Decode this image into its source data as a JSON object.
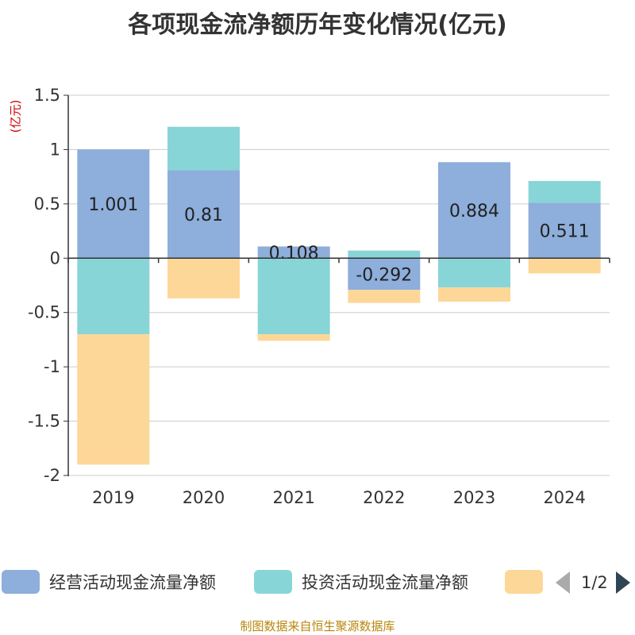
{
  "chart_data": {
    "type": "bar",
    "stacked": true,
    "title": "各项现金流净额历年变化情况(亿元)",
    "ylabel": "(亿元)",
    "categories": [
      "2019",
      "2020",
      "2021",
      "2022",
      "2023",
      "2024"
    ],
    "ylim": [
      -2,
      1.5
    ],
    "yticks": [
      1.5,
      1,
      0.5,
      0,
      -0.5,
      -1,
      -1.5,
      -2
    ],
    "ytick_labels": [
      "1.5",
      "1",
      "0.5",
      "0",
      "-0.5",
      "-1",
      "-1.5",
      "-2"
    ],
    "series": [
      {
        "name": "经营活动现金流量净额",
        "color": "#8eaedb",
        "values": [
          1.001,
          0.81,
          0.108,
          -0.292,
          0.884,
          0.511
        ],
        "labels": [
          "1.001",
          "0.81",
          "0.108",
          "-0.292",
          "0.884",
          "0.511"
        ]
      },
      {
        "name": "投资活动现金流量净额",
        "color": "#88d5d7",
        "values": [
          -0.7,
          0.4,
          -0.7,
          0.07,
          -0.27,
          0.2
        ]
      },
      {
        "name": "",
        "color": "#fdd797",
        "values": [
          -1.2,
          -0.37,
          -0.06,
          -0.12,
          -0.13,
          -0.14
        ]
      }
    ],
    "legend": {
      "position": "bottom",
      "page": "1/2"
    },
    "source": "制图数据来自恒生聚源数据库"
  }
}
